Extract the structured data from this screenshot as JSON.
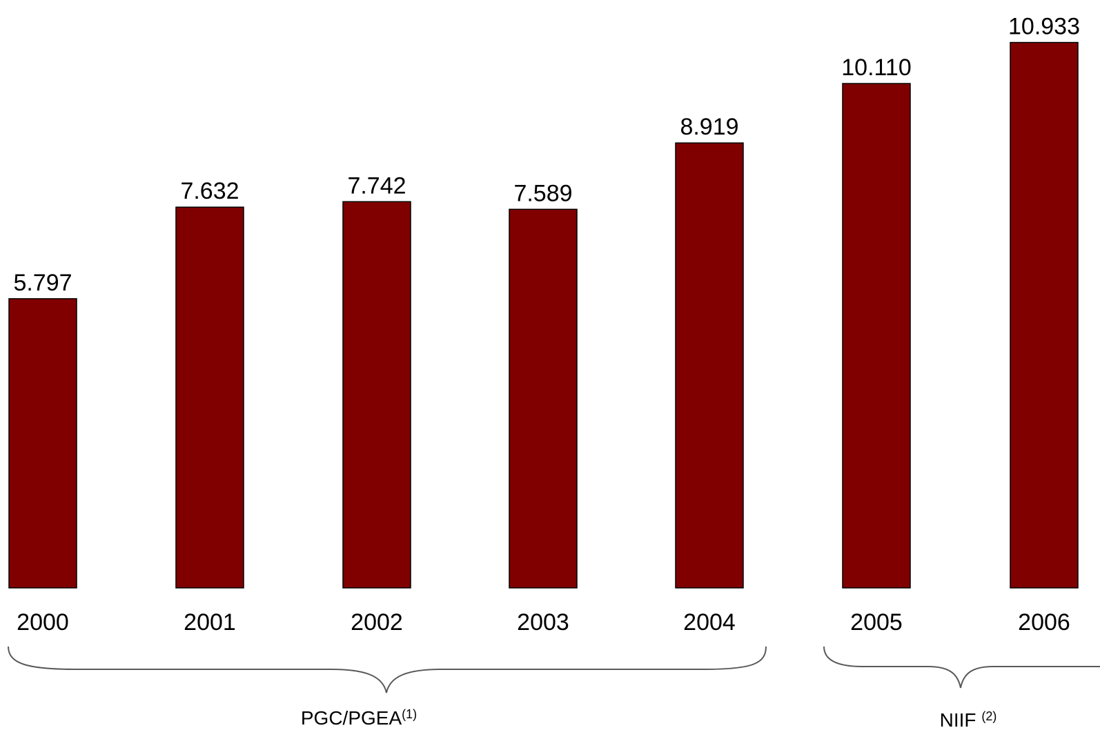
{
  "chart_data": {
    "type": "bar",
    "categories": [
      "2000",
      "2001",
      "2002",
      "2003",
      "2004",
      "2005",
      "2006"
    ],
    "values": [
      5797,
      7632,
      7742,
      7589,
      8919,
      10110,
      10933
    ],
    "data_labels": [
      "5.797",
      "7.632",
      "7.742",
      "7.589",
      "8.919",
      "10.110",
      "10.933"
    ],
    "bar_color": "#800000",
    "bar_border_color": "#000000",
    "grid": false,
    "legend": "none",
    "groups": [
      {
        "label": "PGC/PGEA",
        "note": "(1)",
        "categories": [
          "2000",
          "2001",
          "2002",
          "2003",
          "2004"
        ]
      },
      {
        "label": "NIIF ",
        "note": "(2)",
        "categories": [
          "2005",
          "2006"
        ]
      }
    ]
  }
}
